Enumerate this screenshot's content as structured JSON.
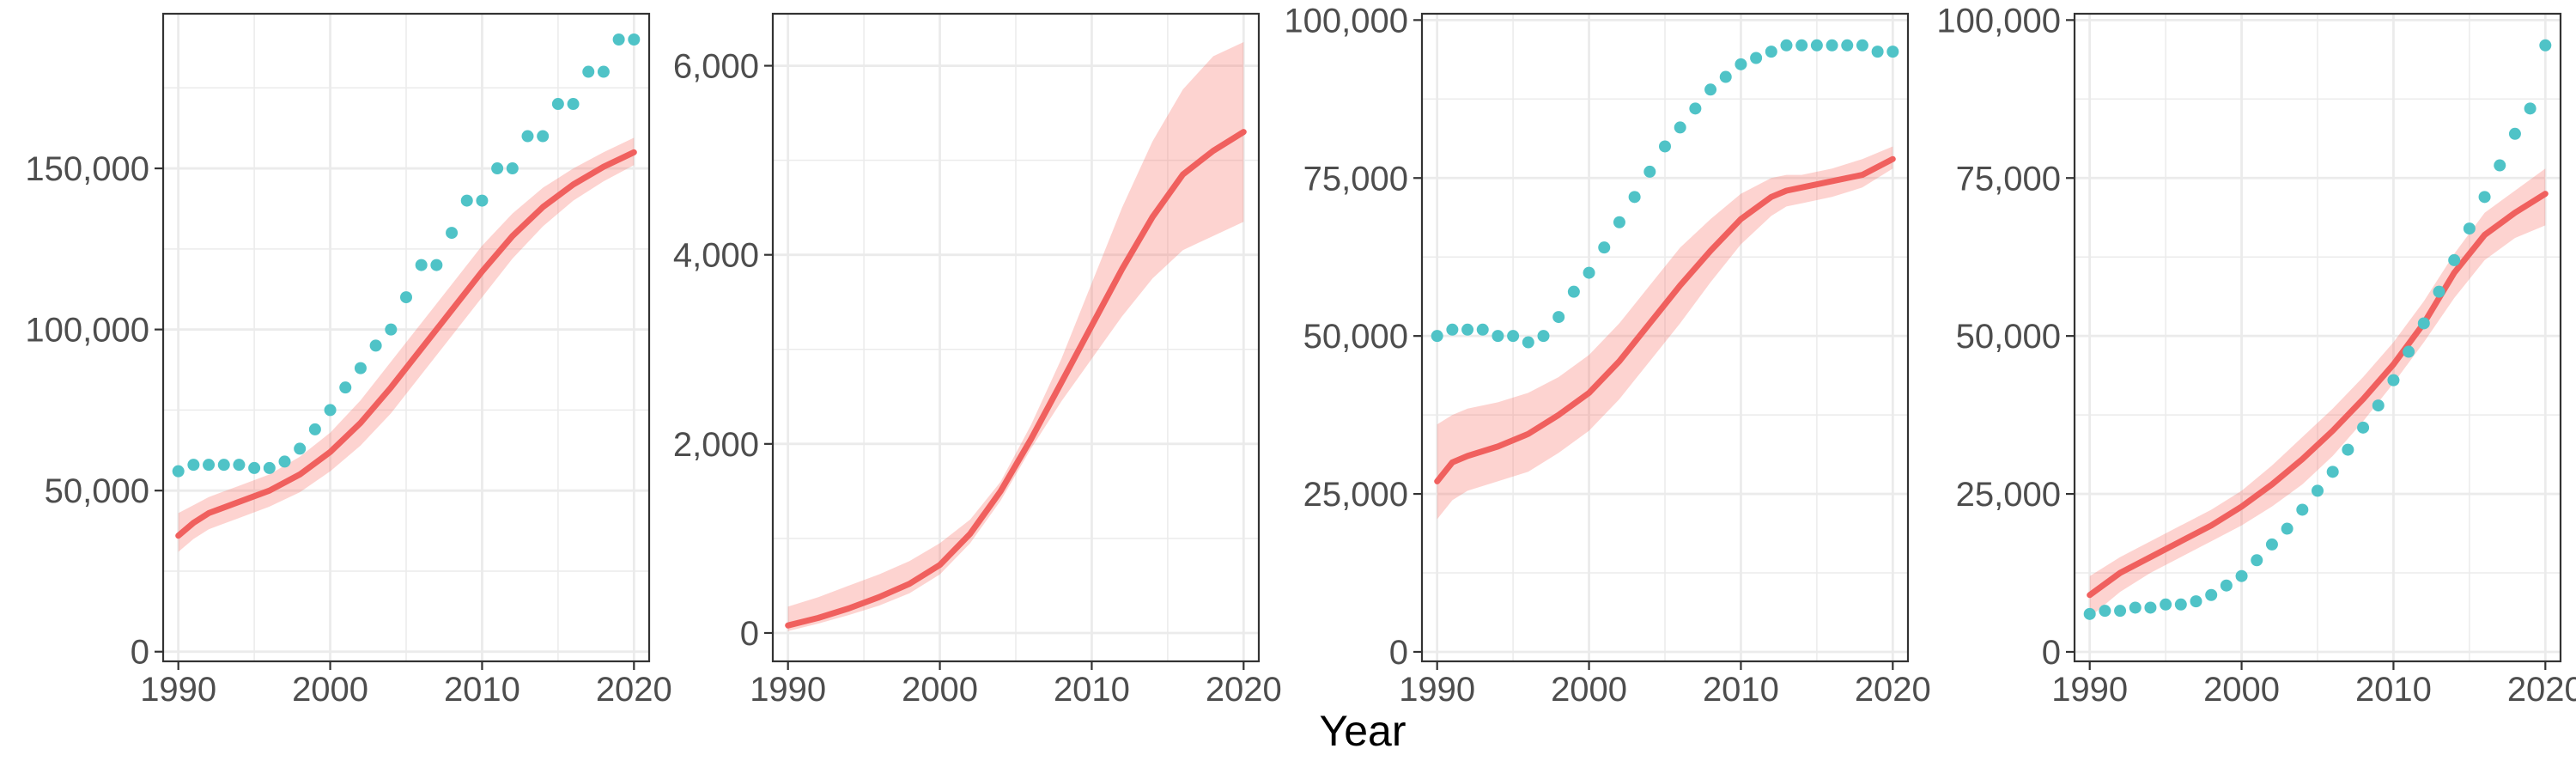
{
  "figure": {
    "xlabel": "Year",
    "colors": {
      "line": "#f0605e",
      "band": "#f8766d",
      "points": "#4fc3c7",
      "grid": "#ebebeb",
      "frame": "#333333",
      "text": "#4d4d4d"
    }
  },
  "chart_data": [
    {
      "type": "line",
      "xlim": [
        1989,
        2021
      ],
      "ylim": [
        -3000,
        198000
      ],
      "x_ticks": [
        1990,
        2000,
        2010,
        2020
      ],
      "x_tick_labels": [
        "1990",
        "2000",
        "2010",
        "2020"
      ],
      "y_ticks": [
        0,
        50000,
        100000,
        150000
      ],
      "y_tick_labels": [
        "0",
        "50,000",
        "100,000",
        "150,000"
      ],
      "grid": true,
      "line_series": {
        "x": [
          1990,
          1991,
          1992,
          1994,
          1996,
          1998,
          2000,
          2002,
          2004,
          2006,
          2008,
          2010,
          2012,
          2014,
          2016,
          2018,
          2020
        ],
        "y": [
          36000,
          40000,
          43000,
          46500,
          50000,
          55000,
          62000,
          71000,
          82000,
          94000,
          106000,
          118000,
          129000,
          138000,
          145000,
          150500,
          155000
        ],
        "lower": [
          31000,
          35000,
          38000,
          41500,
          45000,
          49500,
          56000,
          64000,
          74000,
          86000,
          98000,
          110000,
          122000,
          132000,
          140000,
          146000,
          151000
        ],
        "upper": [
          43000,
          45500,
          48000,
          51500,
          55000,
          60500,
          68000,
          78000,
          90000,
          102000,
          114000,
          126000,
          136000,
          144000,
          150000,
          155000,
          159500
        ]
      },
      "points": {
        "x": [
          1990,
          1991,
          1992,
          1993,
          1994,
          1995,
          1996,
          1997,
          1998,
          1999,
          2000,
          2001,
          2002,
          2003,
          2004,
          2005,
          2006,
          2007,
          2008,
          2009,
          2010,
          2011,
          2012,
          2013,
          2014,
          2015,
          2016,
          2017,
          2018,
          2019,
          2020
        ],
        "y": [
          56000,
          58000,
          58000,
          58000,
          58000,
          57000,
          57000,
          59000,
          63000,
          69000,
          75000,
          82000,
          88000,
          95000,
          100000,
          110000,
          120000,
          120000,
          130000,
          140000,
          140000,
          150000,
          150000,
          160000,
          160000,
          170000,
          170000,
          180000,
          180000,
          190000,
          190000
        ]
      }
    },
    {
      "type": "line",
      "xlim": [
        1989,
        2021
      ],
      "ylim": [
        -300,
        6550
      ],
      "x_ticks": [
        1990,
        2000,
        2010,
        2020
      ],
      "x_tick_labels": [
        "1990",
        "2000",
        "2010",
        "2020"
      ],
      "y_ticks": [
        0,
        2000,
        4000,
        6000
      ],
      "y_tick_labels": [
        "0",
        "2,000",
        "4,000",
        "6,000"
      ],
      "grid": true,
      "line_series": {
        "x": [
          1990,
          1992,
          1994,
          1996,
          1998,
          2000,
          2002,
          2004,
          2006,
          2008,
          2010,
          2012,
          2014,
          2016,
          2018,
          2020
        ],
        "y": [
          80,
          160,
          260,
          380,
          520,
          720,
          1050,
          1500,
          2050,
          2650,
          3250,
          3850,
          4400,
          4850,
          5100,
          5300
        ],
        "lower": [
          20,
          100,
          190,
          290,
          420,
          620,
          950,
          1400,
          1950,
          2450,
          2900,
          3350,
          3750,
          4050,
          4200,
          4350
        ],
        "upper": [
          280,
          380,
          500,
          620,
          760,
          950,
          1200,
          1600,
          2200,
          2900,
          3700,
          4500,
          5200,
          5750,
          6100,
          6250
        ]
      },
      "points": {
        "x": [],
        "y": []
      }
    },
    {
      "type": "line",
      "xlim": [
        1989,
        2021
      ],
      "ylim": [
        -1500,
        101000
      ],
      "x_ticks": [
        1990,
        2000,
        2010,
        2020
      ],
      "x_tick_labels": [
        "1990",
        "2000",
        "2010",
        "2020"
      ],
      "y_ticks": [
        0,
        25000,
        50000,
        75000,
        100000
      ],
      "y_tick_labels": [
        "0",
        "25,000",
        "50,000",
        "75,000",
        "100,000"
      ],
      "grid": true,
      "line_series": {
        "x": [
          1990,
          1991,
          1992,
          1994,
          1996,
          1998,
          2000,
          2002,
          2004,
          2006,
          2008,
          2010,
          2012,
          2013,
          2014,
          2016,
          2018,
          2020
        ],
        "y": [
          27000,
          30000,
          31000,
          32500,
          34500,
          37500,
          41000,
          46000,
          52000,
          58000,
          63500,
          68500,
          72000,
          73000,
          73500,
          74500,
          75500,
          78000
        ],
        "lower": [
          21000,
          24000,
          25500,
          27000,
          28500,
          31500,
          35000,
          40000,
          46000,
          52000,
          58500,
          64500,
          69000,
          70500,
          71000,
          72000,
          73500,
          76500
        ],
        "upper": [
          36000,
          37500,
          38500,
          39500,
          41000,
          43500,
          47000,
          52000,
          58000,
          64000,
          68500,
          72500,
          75000,
          75500,
          75500,
          76500,
          78000,
          80000
        ]
      },
      "points": {
        "x": [
          1990,
          1991,
          1992,
          1993,
          1994,
          1995,
          1996,
          1997,
          1998,
          1999,
          2000,
          2001,
          2002,
          2003,
          2004,
          2005,
          2006,
          2007,
          2008,
          2009,
          2010,
          2011,
          2012,
          2013,
          2014,
          2015,
          2016,
          2017,
          2018,
          2019,
          2020
        ],
        "y": [
          50000,
          51000,
          51000,
          51000,
          50000,
          50000,
          49000,
          50000,
          53000,
          57000,
          60000,
          64000,
          68000,
          72000,
          76000,
          80000,
          83000,
          86000,
          89000,
          91000,
          93000,
          94000,
          95000,
          96000,
          96000,
          96000,
          96000,
          96000,
          96000,
          95000,
          95000
        ]
      }
    },
    {
      "type": "line",
      "xlim": [
        1989,
        2021
      ],
      "ylim": [
        -1500,
        101000
      ],
      "x_ticks": [
        1990,
        2000,
        2010,
        2020
      ],
      "x_tick_labels": [
        "1990",
        "2000",
        "2010",
        "2020"
      ],
      "y_ticks": [
        0,
        25000,
        50000,
        75000,
        100000
      ],
      "y_tick_labels": [
        "0",
        "25,000",
        "50,000",
        "75,000",
        "100,000"
      ],
      "grid": true,
      "line_series": {
        "x": [
          1990,
          1992,
          1994,
          1996,
          1998,
          2000,
          2002,
          2004,
          2006,
          2008,
          2010,
          2012,
          2014,
          2016,
          2018,
          2020
        ],
        "y": [
          9000,
          12500,
          15000,
          17500,
          20000,
          23000,
          26500,
          30500,
          35000,
          40000,
          45500,
          52000,
          60000,
          66000,
          69500,
          72500
        ],
        "lower": [
          5500,
          9500,
          12500,
          15000,
          17500,
          20000,
          23000,
          26500,
          31000,
          36500,
          42500,
          49000,
          56000,
          62000,
          65500,
          67500
        ],
        "upper": [
          12000,
          15000,
          17500,
          20000,
          22500,
          25500,
          29500,
          34000,
          38500,
          43500,
          49000,
          55500,
          63000,
          69500,
          73000,
          76500
        ]
      },
      "points": {
        "x": [
          1990,
          1991,
          1992,
          1993,
          1994,
          1995,
          1996,
          1997,
          1998,
          1999,
          2000,
          2001,
          2002,
          2003,
          2004,
          2005,
          2006,
          2007,
          2008,
          2009,
          2010,
          2011,
          2012,
          2013,
          2014,
          2015,
          2016,
          2017,
          2018,
          2019,
          2020
        ],
        "y": [
          6000,
          6500,
          6500,
          7000,
          7000,
          7500,
          7500,
          8000,
          9000,
          10500,
          12000,
          14500,
          17000,
          19500,
          22500,
          25500,
          28500,
          32000,
          35500,
          39000,
          43000,
          47500,
          52000,
          57000,
          62000,
          67000,
          72000,
          77000,
          82000,
          86000,
          96000
        ]
      }
    }
  ]
}
